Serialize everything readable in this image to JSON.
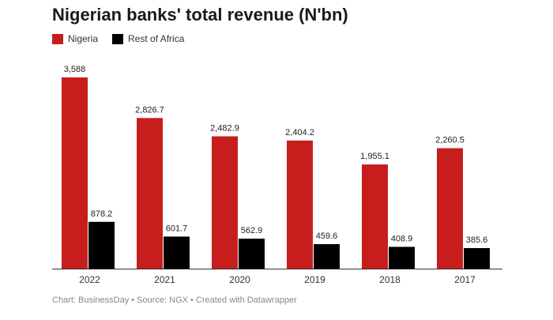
{
  "title": "Nigerian banks' total revenue (N'bn)",
  "footer": "Chart: BusinessDay • Source: NGX • Created with Datawrapper",
  "chart_data": {
    "type": "bar",
    "title": "Nigerian banks' total revenue (N'bn)",
    "categories": [
      "2022",
      "2021",
      "2020",
      "2019",
      "2018",
      "2017"
    ],
    "series": [
      {
        "name": "Nigeria",
        "color": "#c71e1d",
        "values": [
          3588,
          2826.7,
          2482.9,
          2404.2,
          1955.1,
          2260.5
        ],
        "labels": [
          "3,588",
          "2,826.7",
          "2,482.9",
          "2,404.2",
          "1,955.1",
          "2,260.5"
        ]
      },
      {
        "name": "Rest of Africa",
        "color": "#000000",
        "values": [
          878.2,
          601.7,
          562.9,
          459.6,
          408.9,
          385.6
        ],
        "labels": [
          "878.2",
          "601.7",
          "562.9",
          "459.6",
          "408.9",
          "385.6"
        ]
      }
    ],
    "xlabel": "",
    "ylabel": "",
    "ylim": [
      0,
      3588
    ],
    "grid": false,
    "legend_position": "top-left"
  }
}
